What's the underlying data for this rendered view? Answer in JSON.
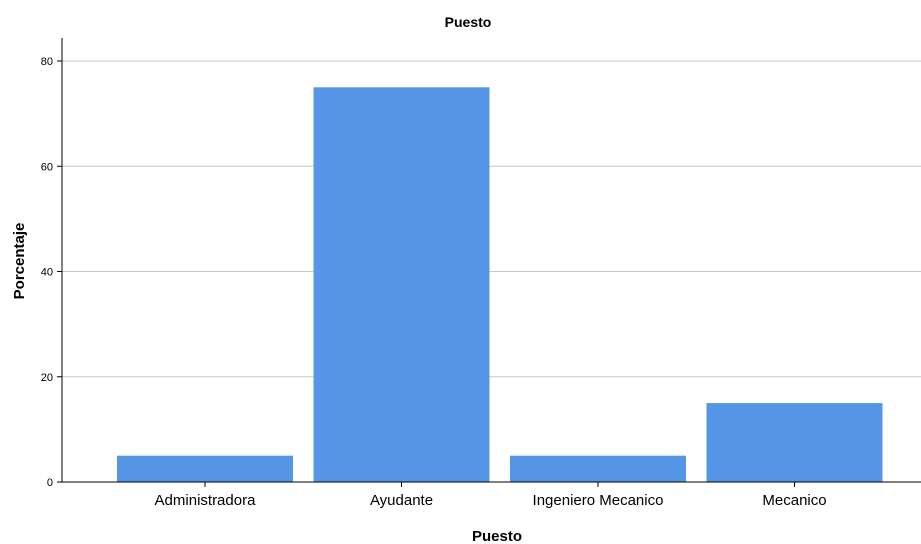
{
  "chart_data": {
    "type": "bar",
    "title": "Puesto",
    "xlabel": "Puesto",
    "ylabel": "Porcentaje",
    "categories": [
      "Administradora",
      "Ayudante",
      "Ingeniero Mecanico",
      "Mecanico"
    ],
    "values": [
      5,
      75,
      5,
      15
    ],
    "ylim": [
      0,
      80
    ],
    "yticks": [
      0,
      20,
      40,
      60,
      80
    ],
    "grid": true,
    "bar_color": "#5596e6"
  }
}
